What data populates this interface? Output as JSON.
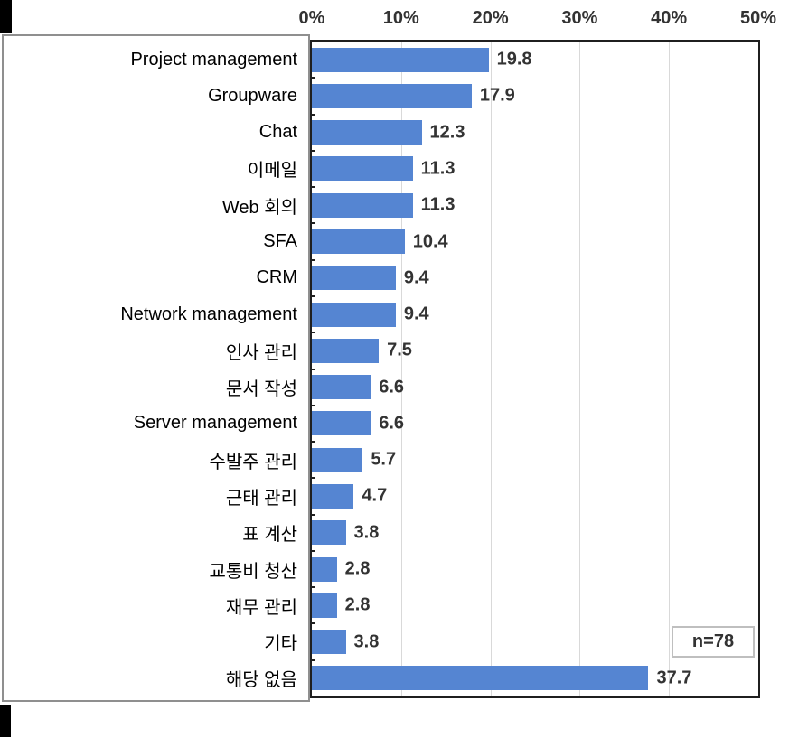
{
  "chart_data": {
    "type": "bar",
    "orientation": "horizontal",
    "title": "",
    "categories": [
      "Project management",
      "Groupware",
      "Chat",
      "이메일",
      "Web 회의",
      "SFA",
      "CRM",
      "Network management",
      "인사 관리",
      "문서 작성",
      "Server management",
      "수발주 관리",
      "근태 관리",
      "표 계산",
      "교통비 청산",
      "재무 관리",
      "기타",
      "해당 없음"
    ],
    "values": [
      19.8,
      17.9,
      12.3,
      11.3,
      11.3,
      10.4,
      9.4,
      9.4,
      7.5,
      6.6,
      6.6,
      5.7,
      4.7,
      3.8,
      2.8,
      2.8,
      3.8,
      37.7
    ],
    "value_labels": [
      "19.8",
      "17.9",
      "12.3",
      "11.3",
      "11.3",
      "10.4",
      "9.4",
      "9.4",
      "7.5",
      "6.6",
      "6.6",
      "5.7",
      "4.7",
      "3.8",
      "2.8",
      "2.8",
      "3.8",
      "37.7"
    ],
    "xlim": [
      0,
      50
    ],
    "x_tick_labels": [
      "0%",
      "10%",
      "20%",
      "30%",
      "40%",
      "50%"
    ],
    "grid": true,
    "legend_position": "none",
    "bar_color": "#5585d2",
    "gridline_color": "#d9d9d9",
    "annotation": {
      "label": "n=78"
    }
  }
}
